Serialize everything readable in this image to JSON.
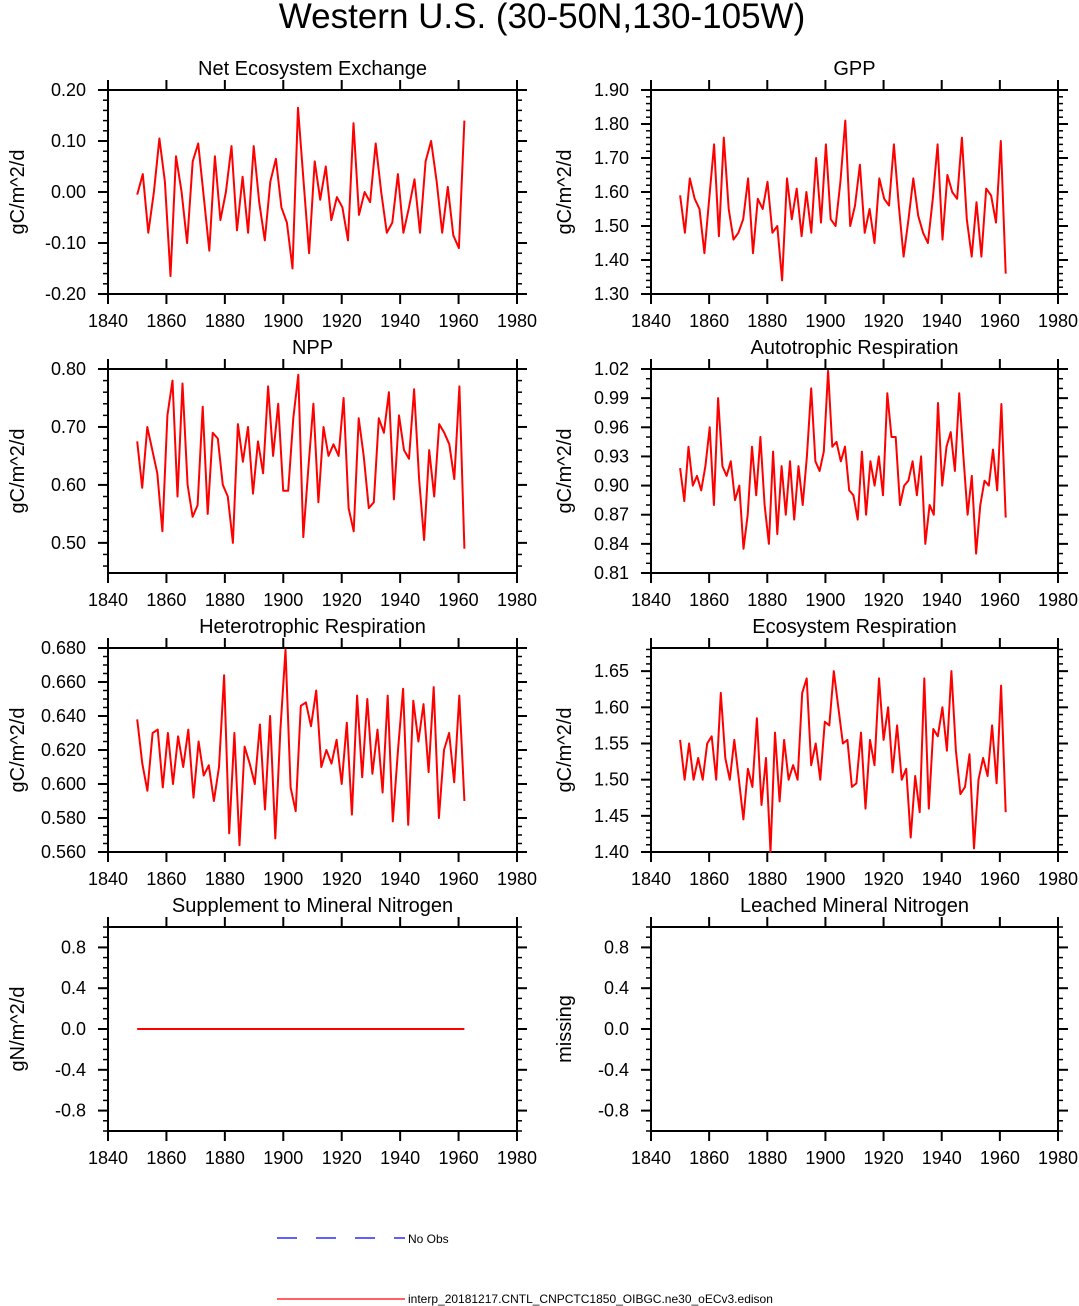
{
  "title": "Western U.S. (30-50N,130-105W)",
  "legend": {
    "obs_label": "No Obs",
    "obs_color": "#0000ff",
    "model_label": "interp_20181217.CNTL_CNPCTC1850_OIBGC.ne30_oECv3.edison",
    "model_color": "#ff0000"
  },
  "chart_data": [
    {
      "type": "line",
      "title": "Net Ecosystem Exchange",
      "ylabel": "gC/m^2/d",
      "xlim": [
        1840,
        1980
      ],
      "ylim": [
        -0.2,
        0.2
      ],
      "xticks": [
        "1840",
        "1860",
        "1880",
        "1900",
        "1920",
        "1940",
        "1960",
        "1980"
      ],
      "yticks": [
        "-0.20",
        "-0.10",
        "0.00",
        "0.10",
        "0.20"
      ],
      "yminor": 0.02,
      "x_range": [
        1850,
        1962
      ],
      "values": [
        -0.005,
        0.035,
        -0.08,
        0.0,
        0.105,
        0.02,
        -0.165,
        0.07,
        0.0,
        -0.1,
        0.06,
        0.095,
        -0.01,
        -0.115,
        0.07,
        -0.055,
        0.0,
        0.09,
        -0.075,
        0.03,
        -0.08,
        0.09,
        -0.02,
        -0.095,
        0.02,
        0.065,
        -0.03,
        -0.06,
        -0.15,
        0.165,
        0.02,
        -0.12,
        0.06,
        -0.015,
        0.05,
        -0.055,
        -0.01,
        -0.03,
        -0.095,
        0.135,
        -0.045,
        0.0,
        -0.02,
        0.095,
        0.0,
        -0.08,
        -0.06,
        0.035,
        -0.08,
        -0.03,
        0.025,
        -0.08,
        0.06,
        0.1,
        0.02,
        -0.08,
        0.01,
        -0.085,
        -0.11,
        0.14
      ]
    },
    {
      "type": "line",
      "title": "GPP",
      "ylabel": "gC/m^2/d",
      "xlim": [
        1840,
        1980
      ],
      "ylim": [
        1.3,
        1.9
      ],
      "xticks": [
        "1840",
        "1860",
        "1880",
        "1900",
        "1920",
        "1940",
        "1960",
        "1980"
      ],
      "yticks": [
        "1.30",
        "1.40",
        "1.50",
        "1.60",
        "1.70",
        "1.80",
        "1.90"
      ],
      "yminor": 0.02,
      "x_range": [
        1850,
        1962
      ],
      "values": [
        1.59,
        1.48,
        1.64,
        1.58,
        1.55,
        1.42,
        1.58,
        1.74,
        1.47,
        1.76,
        1.55,
        1.46,
        1.48,
        1.52,
        1.64,
        1.42,
        1.58,
        1.55,
        1.63,
        1.48,
        1.5,
        1.34,
        1.64,
        1.52,
        1.61,
        1.47,
        1.6,
        1.48,
        1.7,
        1.51,
        1.74,
        1.52,
        1.5,
        1.63,
        1.81,
        1.5,
        1.56,
        1.68,
        1.48,
        1.55,
        1.45,
        1.64,
        1.58,
        1.56,
        1.74,
        1.56,
        1.41,
        1.52,
        1.64,
        1.53,
        1.48,
        1.45,
        1.58,
        1.74,
        1.46,
        1.65,
        1.6,
        1.58,
        1.76,
        1.52,
        1.41,
        1.57,
        1.41,
        1.61,
        1.59,
        1.51,
        1.75,
        1.36
      ]
    },
    {
      "type": "line",
      "title": "NPP",
      "ylabel": "gC/m^2/d",
      "xlim": [
        1840,
        1980
      ],
      "ylim": [
        0.448,
        0.8
      ],
      "xticks": [
        "1840",
        "1860",
        "1880",
        "1900",
        "1920",
        "1940",
        "1960",
        "1980"
      ],
      "yticks": [
        "0.50",
        "0.60",
        "0.70",
        "0.80"
      ],
      "yminor": 0.02,
      "x_range": [
        1850,
        1962
      ],
      "values": [
        0.675,
        0.595,
        0.7,
        0.66,
        0.62,
        0.52,
        0.72,
        0.78,
        0.58,
        0.775,
        0.6,
        0.545,
        0.565,
        0.735,
        0.55,
        0.69,
        0.68,
        0.6,
        0.58,
        0.5,
        0.705,
        0.64,
        0.7,
        0.585,
        0.675,
        0.62,
        0.77,
        0.65,
        0.74,
        0.59,
        0.59,
        0.715,
        0.79,
        0.51,
        0.63,
        0.74,
        0.57,
        0.7,
        0.65,
        0.67,
        0.65,
        0.75,
        0.56,
        0.52,
        0.715,
        0.65,
        0.56,
        0.57,
        0.715,
        0.69,
        0.76,
        0.575,
        0.72,
        0.66,
        0.645,
        0.765,
        0.61,
        0.505,
        0.66,
        0.58,
        0.705,
        0.69,
        0.67,
        0.61,
        0.77,
        0.49
      ]
    },
    {
      "type": "line",
      "title": "Autotrophic Respiration",
      "ylabel": "gC/m^2/d",
      "xlim": [
        1840,
        1980
      ],
      "ylim": [
        0.81,
        1.02
      ],
      "xticks": [
        "1840",
        "1860",
        "1880",
        "1900",
        "1920",
        "1940",
        "1960",
        "1980"
      ],
      "yticks": [
        "0.81",
        "0.84",
        "0.87",
        "0.90",
        "0.93",
        "0.96",
        "0.99",
        "1.02"
      ],
      "yminor": 0.01,
      "x_range": [
        1850,
        1962
      ],
      "values": [
        0.918,
        0.884,
        0.94,
        0.9,
        0.91,
        0.895,
        0.92,
        0.96,
        0.88,
        0.99,
        0.92,
        0.91,
        0.925,
        0.885,
        0.9,
        0.835,
        0.87,
        0.94,
        0.89,
        0.95,
        0.88,
        0.84,
        0.935,
        0.85,
        0.92,
        0.87,
        0.925,
        0.865,
        0.92,
        0.88,
        0.93,
        1.0,
        0.925,
        0.915,
        0.935,
        1.018,
        0.94,
        0.945,
        0.925,
        0.94,
        0.895,
        0.89,
        0.865,
        0.935,
        0.87,
        0.925,
        0.9,
        0.93,
        0.89,
        0.995,
        0.95,
        0.95,
        0.88,
        0.9,
        0.905,
        0.925,
        0.89,
        0.93,
        0.84,
        0.88,
        0.87,
        0.985,
        0.9,
        0.94,
        0.955,
        0.915,
        0.995,
        0.93,
        0.87,
        0.91,
        0.83,
        0.88,
        0.905,
        0.9,
        0.937,
        0.895,
        0.984,
        0.867
      ]
    },
    {
      "type": "line",
      "title": "Heterotrophic Respiration",
      "ylabel": "gC/m^2/d",
      "xlim": [
        1840,
        1980
      ],
      "ylim": [
        0.56,
        0.68
      ],
      "xticks": [
        "1840",
        "1860",
        "1880",
        "1900",
        "1920",
        "1940",
        "1960",
        "1980"
      ],
      "yticks": [
        "0.560",
        "0.580",
        "0.600",
        "0.620",
        "0.640",
        "0.660",
        "0.680"
      ],
      "yminor": 0.005,
      "x_range": [
        1850,
        1962
      ],
      "values": [
        0.638,
        0.612,
        0.596,
        0.63,
        0.632,
        0.598,
        0.63,
        0.6,
        0.628,
        0.61,
        0.632,
        0.592,
        0.625,
        0.605,
        0.611,
        0.59,
        0.61,
        0.664,
        0.571,
        0.63,
        0.564,
        0.622,
        0.612,
        0.6,
        0.635,
        0.585,
        0.64,
        0.568,
        0.632,
        0.679,
        0.598,
        0.584,
        0.646,
        0.648,
        0.634,
        0.655,
        0.61,
        0.62,
        0.612,
        0.626,
        0.6,
        0.636,
        0.582,
        0.652,
        0.604,
        0.65,
        0.606,
        0.632,
        0.595,
        0.652,
        0.578,
        0.62,
        0.656,
        0.576,
        0.649,
        0.625,
        0.647,
        0.607,
        0.657,
        0.58,
        0.62,
        0.63,
        0.601,
        0.652,
        0.59
      ]
    },
    {
      "type": "line",
      "title": "Ecosystem Respiration",
      "ylabel": "gC/m^2/d",
      "xlim": [
        1840,
        1980
      ],
      "ylim": [
        1.4,
        1.682
      ],
      "xticks": [
        "1840",
        "1860",
        "1880",
        "1900",
        "1920",
        "1940",
        "1960",
        "1980"
      ],
      "yticks": [
        "1.40",
        "1.45",
        "1.50",
        "1.55",
        "1.60",
        "1.65"
      ],
      "yminor": 0.01,
      "x_range": [
        1850,
        1962
      ],
      "values": [
        1.555,
        1.5,
        1.55,
        1.5,
        1.53,
        1.5,
        1.55,
        1.56,
        1.5,
        1.62,
        1.53,
        1.5,
        1.555,
        1.5,
        1.445,
        1.515,
        1.49,
        1.585,
        1.465,
        1.53,
        1.4,
        1.565,
        1.47,
        1.555,
        1.5,
        1.52,
        1.5,
        1.62,
        1.64,
        1.52,
        1.55,
        1.5,
        1.58,
        1.575,
        1.65,
        1.6,
        1.55,
        1.555,
        1.49,
        1.495,
        1.565,
        1.46,
        1.555,
        1.52,
        1.64,
        1.555,
        1.6,
        1.51,
        1.575,
        1.5,
        1.515,
        1.42,
        1.505,
        1.455,
        1.64,
        1.46,
        1.57,
        1.56,
        1.6,
        1.54,
        1.65,
        1.54,
        1.48,
        1.49,
        1.535,
        1.405,
        1.5,
        1.53,
        1.505,
        1.575,
        1.495,
        1.63,
        1.455
      ]
    },
    {
      "type": "line",
      "title": "Supplement to Mineral Nitrogen",
      "ylabel": "gN/m^2/d",
      "xlim": [
        1840,
        1980
      ],
      "ylim": [
        -1.0,
        1.0
      ],
      "xticks": [
        "1840",
        "1860",
        "1880",
        "1900",
        "1920",
        "1940",
        "1960",
        "1980"
      ],
      "yticks": [
        "-0.8",
        "-0.4",
        "0.0",
        "0.4",
        "0.8"
      ],
      "yminor": 0.1,
      "x_range": [
        1850,
        1962
      ],
      "values": [
        0,
        0
      ]
    },
    {
      "type": "line",
      "title": "Leached Mineral Nitrogen",
      "ylabel": "missing",
      "xlim": [
        1840,
        1980
      ],
      "ylim": [
        -1.0,
        1.0
      ],
      "xticks": [
        "1840",
        "1860",
        "1880",
        "1900",
        "1920",
        "1940",
        "1960",
        "1980"
      ],
      "yticks": [
        "-0.8",
        "-0.4",
        "0.0",
        "0.4",
        "0.8"
      ],
      "yminor": 0.1,
      "x_range": [
        1850,
        1962
      ],
      "values": []
    }
  ]
}
